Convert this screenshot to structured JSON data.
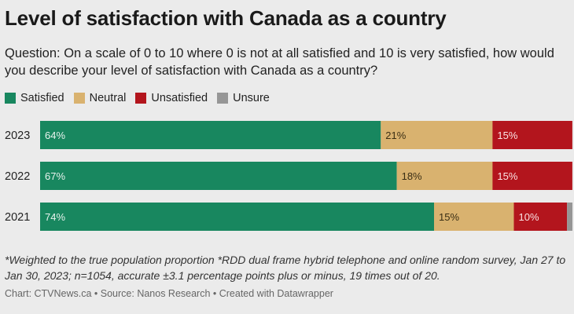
{
  "title": "Level of satisfaction with Canada as a country",
  "subtitle": "Question: On a scale of 0 to 10 where 0 is not at all satisfied and 10 is very satisfied, how would you describe your level of satisfaction with Canada as a country?",
  "note": "*Weighted to the true population proportion *RDD dual frame hybrid telephone and online random survey, Jan 27 to Jan 30, 2023; n=1054, accurate ±3.1 percentage points plus or minus, 19 times out of 20.",
  "credit": "Chart: CTVNews.ca • Source: Nanos Research • Created with Datawrapper",
  "chart_data": {
    "type": "bar",
    "orientation": "horizontal",
    "stacked": true,
    "legend_position": "top-left",
    "grid": false,
    "xlim": [
      0,
      100
    ],
    "categories": [
      "2023",
      "2022",
      "2021"
    ],
    "series": [
      {
        "name": "Satisfied",
        "color": "#18875f",
        "values": [
          64,
          67,
          74
        ],
        "labels": [
          "64%",
          "67%",
          "74%"
        ]
      },
      {
        "name": "Neutral",
        "color": "#d9b26f",
        "values": [
          21,
          18,
          15
        ],
        "labels": [
          "21%",
          "18%",
          "15%"
        ]
      },
      {
        "name": "Unsatisfied",
        "color": "#b3151d",
        "values": [
          15,
          15,
          10
        ],
        "labels": [
          "15%",
          "15%",
          "10%"
        ]
      },
      {
        "name": "Unsure",
        "color": "#969696",
        "values": [
          0,
          0,
          1
        ],
        "labels": [
          "",
          "",
          ""
        ]
      }
    ]
  }
}
